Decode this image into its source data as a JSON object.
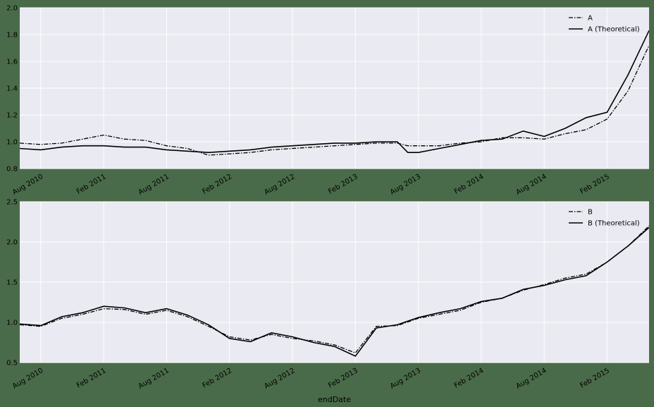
{
  "figure": {
    "background": "#4a6b4a",
    "plot_background": "#eaeaf2",
    "grid_color": "#ffffff",
    "line_color": "#000000"
  },
  "chart_data": [
    {
      "type": "line",
      "title": "",
      "xlabel": "",
      "ylabel": "",
      "x_tick_labels": [
        "Aug 2010",
        "Feb 2011",
        "Aug 2011",
        "Feb 2012",
        "Aug 2012",
        "Feb 2013",
        "Aug 2013",
        "Feb 2014",
        "Aug 2014",
        "Feb 2015"
      ],
      "xlim": [
        "2010-06",
        "2015-06"
      ],
      "ylim": [
        0.8,
        2.0
      ],
      "y_ticks": [
        "0.8",
        "1.0",
        "1.2",
        "1.4",
        "1.6",
        "1.8",
        "2.0"
      ],
      "grid": true,
      "legend_position": "top-right",
      "x": [
        "2010-06",
        "2010-08",
        "2010-10",
        "2010-12",
        "2011-02",
        "2011-04",
        "2011-06",
        "2011-08",
        "2011-10",
        "2011-12",
        "2012-02",
        "2012-04",
        "2012-06",
        "2012-08",
        "2012-10",
        "2012-12",
        "2013-02",
        "2013-04",
        "2013-06",
        "2013-07",
        "2013-08",
        "2013-10",
        "2013-12",
        "2014-02",
        "2014-04",
        "2014-06",
        "2014-08",
        "2014-10",
        "2014-12",
        "2015-02",
        "2015-04",
        "2015-06"
      ],
      "series": [
        {
          "name": "A",
          "style": "dashdot",
          "values": [
            0.99,
            0.98,
            0.99,
            1.02,
            1.05,
            1.02,
            1.01,
            0.97,
            0.95,
            0.9,
            0.91,
            0.92,
            0.94,
            0.95,
            0.96,
            0.97,
            0.98,
            0.99,
            0.99,
            0.97,
            0.97,
            0.97,
            0.99,
            1.0,
            1.03,
            1.03,
            1.02,
            1.06,
            1.09,
            1.17,
            1.38,
            1.72
          ]
        },
        {
          "name": "A (Theoretical)",
          "style": "solid",
          "values": [
            0.95,
            0.94,
            0.96,
            0.97,
            0.97,
            0.96,
            0.96,
            0.94,
            0.93,
            0.92,
            0.93,
            0.94,
            0.96,
            0.97,
            0.98,
            0.99,
            0.99,
            1.0,
            1.0,
            0.92,
            0.92,
            0.95,
            0.98,
            1.01,
            1.02,
            1.08,
            1.04,
            1.1,
            1.18,
            1.22,
            1.5,
            1.83
          ]
        }
      ]
    },
    {
      "type": "line",
      "title": "",
      "xlabel": "endDate",
      "ylabel": "",
      "x_tick_labels": [
        "Aug 2010",
        "Feb 2011",
        "Aug 2011",
        "Feb 2012",
        "Aug 2012",
        "Feb 2013",
        "Aug 2013",
        "Feb 2014",
        "Aug 2014",
        "Feb 2015"
      ],
      "xlim": [
        "2010-06",
        "2015-06"
      ],
      "ylim": [
        0.5,
        2.5
      ],
      "y_ticks": [
        "0.5",
        "1.0",
        "1.5",
        "2.0",
        "2.5"
      ],
      "grid": true,
      "legend_position": "top-right",
      "x": [
        "2010-06",
        "2010-08",
        "2010-10",
        "2010-12",
        "2011-02",
        "2011-04",
        "2011-06",
        "2011-08",
        "2011-10",
        "2011-12",
        "2012-02",
        "2012-04",
        "2012-06",
        "2012-08",
        "2012-10",
        "2012-12",
        "2013-02",
        "2013-04",
        "2013-06",
        "2013-08",
        "2013-10",
        "2013-12",
        "2014-02",
        "2014-04",
        "2014-06",
        "2014-08",
        "2014-10",
        "2014-12",
        "2015-02",
        "2015-04",
        "2015-06"
      ],
      "series": [
        {
          "name": "B",
          "style": "dashdot",
          "values": [
            0.97,
            0.95,
            1.05,
            1.1,
            1.17,
            1.16,
            1.1,
            1.15,
            1.07,
            0.95,
            0.82,
            0.78,
            0.85,
            0.8,
            0.77,
            0.72,
            0.62,
            0.95,
            0.96,
            1.05,
            1.1,
            1.15,
            1.25,
            1.3,
            1.4,
            1.47,
            1.55,
            1.6,
            1.75,
            1.95,
            2.2
          ]
        },
        {
          "name": "B (Theoretical)",
          "style": "solid",
          "values": [
            0.98,
            0.96,
            1.07,
            1.12,
            1.2,
            1.18,
            1.12,
            1.17,
            1.09,
            0.97,
            0.8,
            0.76,
            0.87,
            0.82,
            0.75,
            0.7,
            0.58,
            0.93,
            0.97,
            1.06,
            1.12,
            1.17,
            1.26,
            1.3,
            1.41,
            1.46,
            1.53,
            1.58,
            1.75,
            1.95,
            2.18
          ]
        }
      ]
    }
  ]
}
